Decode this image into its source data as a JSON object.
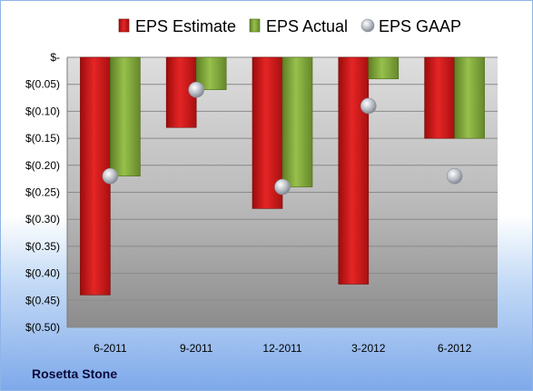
{
  "company": "Rosetta Stone",
  "colors": {
    "estimate": "#dd1f1f",
    "actual": "#8ab43f",
    "gaap": "#b7bcc4"
  },
  "chart_data": {
    "type": "bar",
    "categories": [
      "6-2011",
      "9-2011",
      "12-2011",
      "3-2012",
      "6-2012"
    ],
    "series": [
      {
        "name": "EPS Estimate",
        "kind": "bar",
        "values": [
          -0.44,
          -0.13,
          -0.28,
          -0.42,
          -0.15
        ]
      },
      {
        "name": "EPS Actual",
        "kind": "bar",
        "values": [
          -0.22,
          -0.06,
          -0.24,
          -0.04,
          -0.15
        ]
      },
      {
        "name": "EPS GAAP",
        "kind": "scatter",
        "values": [
          -0.22,
          -0.06,
          -0.24,
          -0.09,
          -0.22
        ]
      }
    ],
    "ylim": [
      -0.5,
      0
    ],
    "yticks": [
      0,
      -0.05,
      -0.1,
      -0.15,
      -0.2,
      -0.25,
      -0.3,
      -0.35,
      -0.4,
      -0.45,
      -0.5
    ],
    "ytick_labels": [
      "$-",
      "$(0.05)",
      "$(0.10)",
      "$(0.15)",
      "$(0.20)",
      "$(0.25)",
      "$(0.30)",
      "$(0.35)",
      "$(0.40)",
      "$(0.45)",
      "$(0.50)"
    ],
    "legend_position": "top",
    "grid": true
  }
}
